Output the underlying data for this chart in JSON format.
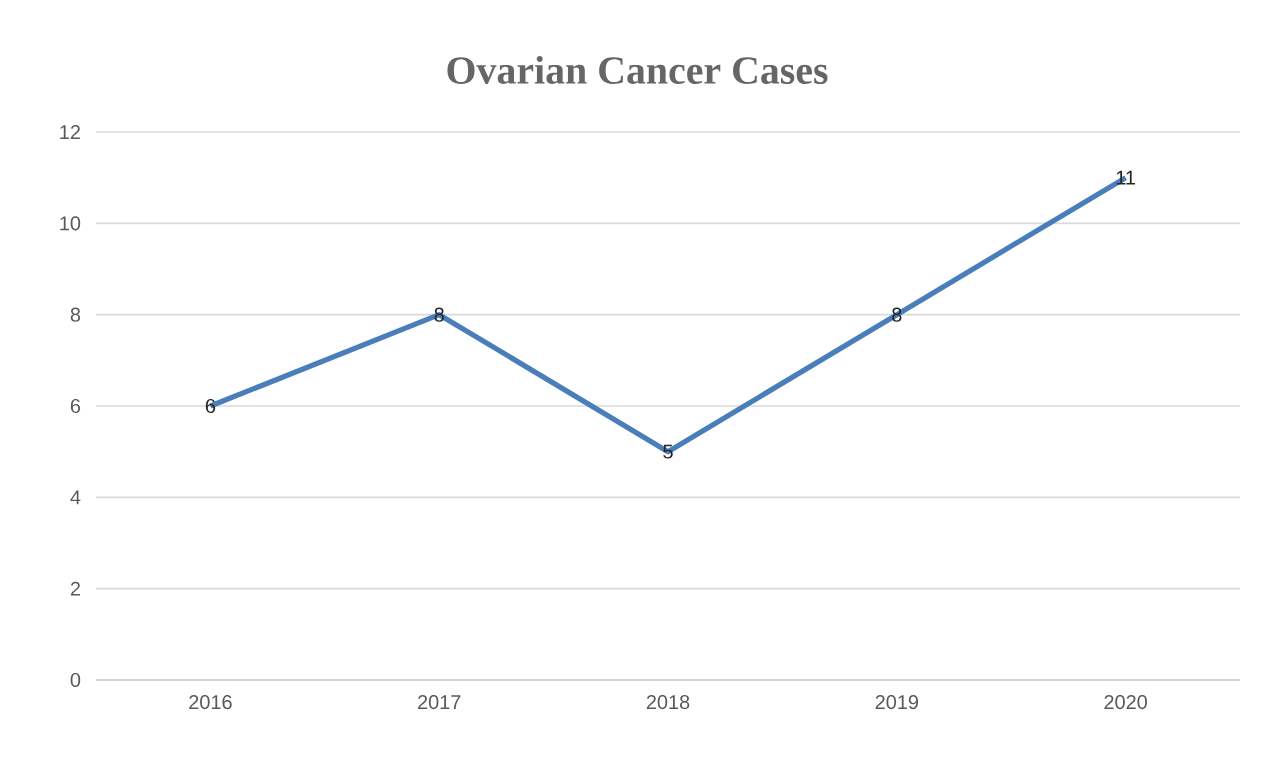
{
  "chart_data": {
    "type": "line",
    "title": "Ovarian Cancer Cases",
    "categories": [
      "2016",
      "2017",
      "2018",
      "2019",
      "2020"
    ],
    "values": [
      6,
      8,
      5,
      8,
      11
    ],
    "color": "#4a7ebb",
    "ylim": [
      0,
      12
    ],
    "yticks": [
      0,
      2,
      4,
      6,
      8,
      10,
      12
    ],
    "grid": "y",
    "data_labels": true,
    "marker": "none",
    "line_style": "solid"
  }
}
